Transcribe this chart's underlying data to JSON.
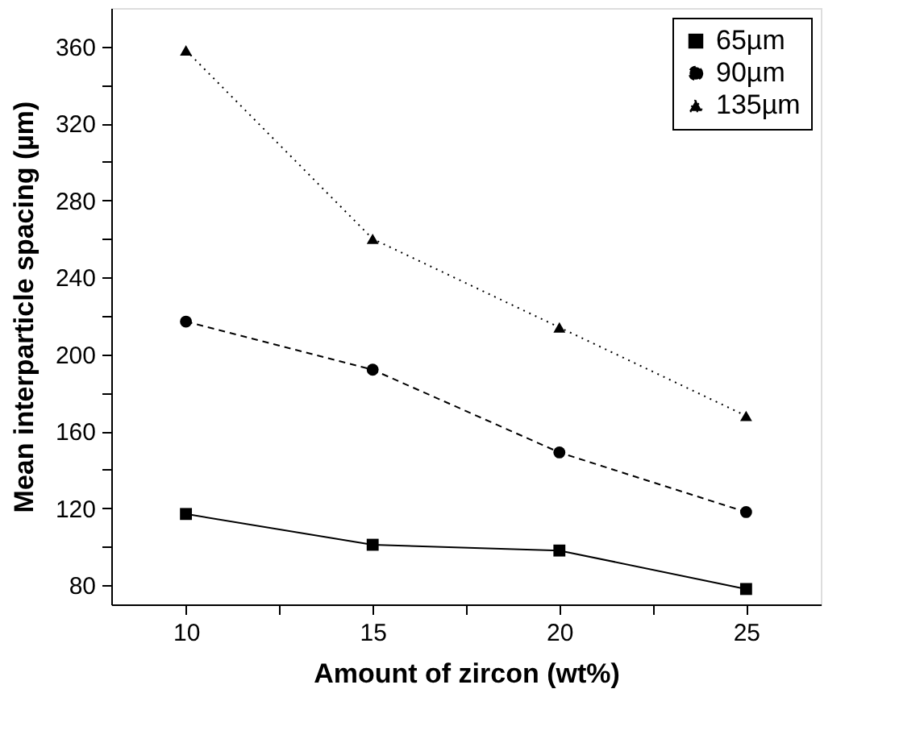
{
  "chart_data": {
    "type": "line",
    "xlabel": "Amount of zircon (wt%)",
    "ylabel": "Mean interparticle spacing (µm)",
    "x": [
      10,
      15,
      20,
      25
    ],
    "series": [
      {
        "name": "65µm",
        "color": "#000000",
        "values": [
          117,
          101,
          98,
          78
        ],
        "marker": "square",
        "line_style": "solid"
      },
      {
        "name": "90µm",
        "color": "#000000",
        "values": [
          217,
          192,
          149,
          118
        ],
        "marker": "circle",
        "line_style": "dashed"
      },
      {
        "name": "135µm",
        "color": "#000000",
        "values": [
          358,
          260,
          214,
          168
        ],
        "marker": "triangle",
        "line_style": "dotted"
      }
    ],
    "xlim": [
      8,
      27
    ],
    "ylim": [
      70,
      380
    ],
    "xticks": [
      10,
      {
        "value": 12.5,
        "label": null
      },
      15,
      {
        "value": 17.5,
        "label": null
      },
      20,
      {
        "value": 22.5,
        "label": null
      },
      25
    ],
    "yticks": [
      80,
      {
        "value": 100,
        "label": null
      },
      120,
      {
        "value": 140,
        "label": null
      },
      160,
      {
        "value": 180,
        "label": null
      },
      200,
      {
        "value": 220,
        "label": null
      },
      240,
      {
        "value": 260,
        "label": null
      },
      280,
      {
        "value": 300,
        "label": null
      },
      320,
      {
        "value": 340,
        "label": null
      },
      360
    ],
    "grid": false,
    "legend": "top right"
  }
}
